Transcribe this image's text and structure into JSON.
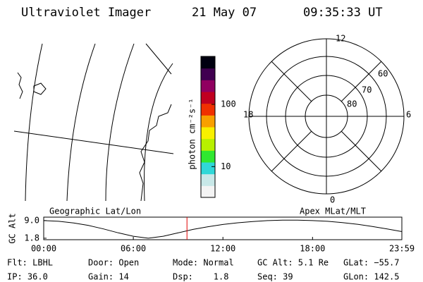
{
  "header": {
    "title": "Ultraviolet Imager",
    "date": "21 May 07",
    "time": "09:35:33 UT"
  },
  "polar": {
    "mlt_labels": [
      "12",
      "18",
      "6",
      "0"
    ],
    "lat_labels": [
      "60",
      "70",
      "80"
    ]
  },
  "chart_data": [
    {
      "type": "colorbar",
      "label": "photon cm⁻²s⁻¹",
      "log": true,
      "ylim": [
        3.2,
        590
      ],
      "yticks": [
        10,
        100
      ],
      "colors": [
        "#f4f4f4",
        "#c8e8e8",
        "#30d8d8",
        "#30e830",
        "#b8f000",
        "#f8f000",
        "#f8a000",
        "#f03000",
        "#c00020",
        "#900060",
        "#400050",
        "#000010"
      ]
    },
    {
      "type": "line",
      "subtitle_left": "Geographic Lat/Lon",
      "subtitle_right": "Apex MLat/MLT",
      "ylabel": "GC Alt",
      "x": [
        0,
        1,
        2,
        3,
        4,
        5,
        6,
        7,
        8,
        9,
        10,
        11,
        12,
        13,
        14,
        15,
        16,
        17,
        18,
        19,
        20,
        21,
        22,
        23,
        23.98
      ],
      "values": [
        9.0,
        8.7,
        8.0,
        7.0,
        5.6,
        4.0,
        2.6,
        1.8,
        2.6,
        4.0,
        5.4,
        6.5,
        7.4,
        8.1,
        8.6,
        9.0,
        9.2,
        9.2,
        9.0,
        8.7,
        8.2,
        7.5,
        6.6,
        5.6,
        4.5
      ],
      "color": "#000000",
      "marker_color": "#e00000",
      "xlim": [
        0,
        23.98
      ],
      "xticks": [
        {
          "value": 0,
          "label": "00:00"
        },
        {
          "value": 6,
          "label": "06:00"
        },
        {
          "value": 12,
          "label": "12:00"
        },
        {
          "value": 18,
          "label": "18:00"
        },
        {
          "value": 23.98,
          "label": "23:59"
        }
      ],
      "ylim": [
        1.2,
        10.4
      ],
      "yticks": [
        {
          "value": 9,
          "label": "9.0"
        },
        1.8
      ]
    }
  ],
  "footer": [
    [
      "Flt: LBHL",
      "Door: Open",
      "Mode: Normal",
      "GC Alt: 5.1 Re",
      "GLat: −55.7"
    ],
    [
      "IP: 36.0",
      "Gain: 14",
      "Dsp:    1.8",
      "Seq: 39",
      "GLon: 142.5"
    ]
  ]
}
